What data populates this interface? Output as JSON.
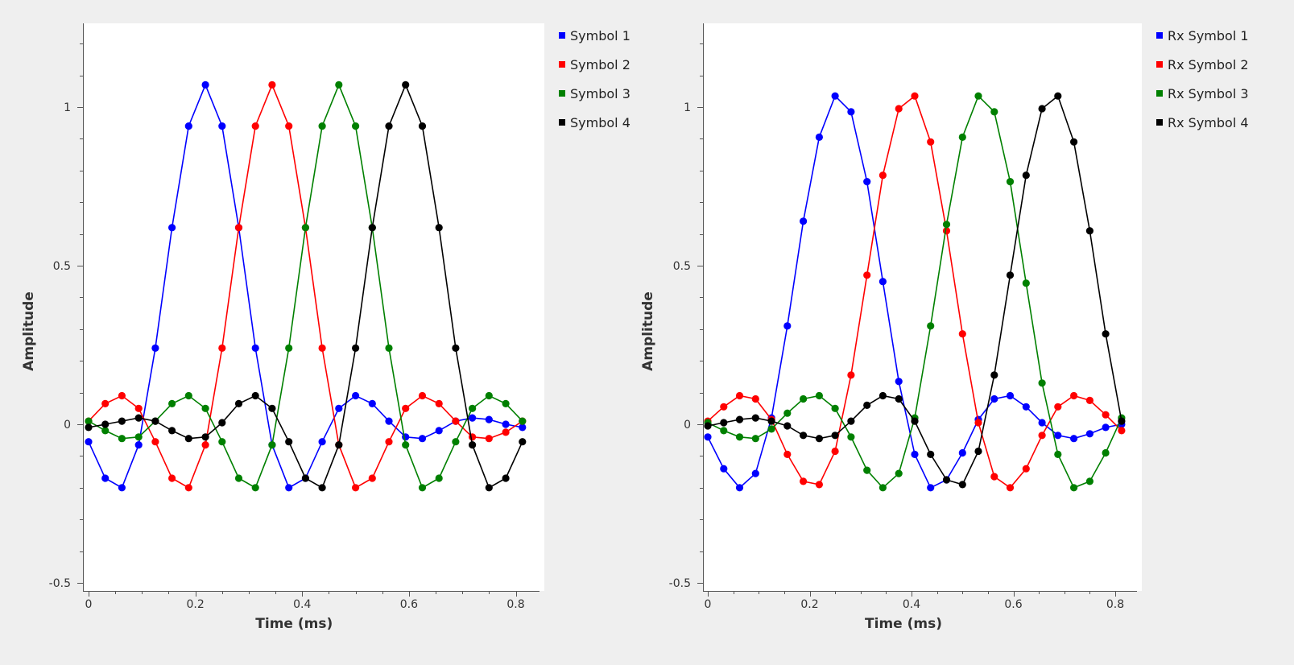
{
  "chart_data": [
    {
      "type": "line",
      "xlabel": "Time (ms)",
      "ylabel": "Amplitude",
      "xlim": [
        0,
        0.8125
      ],
      "ylim": [
        -0.5,
        1.25
      ],
      "xticks": [
        "0",
        "0.2",
        "0.4",
        "0.6",
        "0.8"
      ],
      "yticks": [
        "-0.5",
        "0",
        "0.5",
        "1"
      ],
      "grid": false,
      "legend_position": "outside-right-top",
      "x": [
        0,
        0.03125,
        0.0625,
        0.09375,
        0.125,
        0.15625,
        0.1875,
        0.21875,
        0.25,
        0.28125,
        0.3125,
        0.34375,
        0.375,
        0.40625,
        0.4375,
        0.46875,
        0.5,
        0.53125,
        0.5625,
        0.59375,
        0.625,
        0.65625,
        0.6875,
        0.71875,
        0.75,
        0.78125,
        0.8125
      ],
      "series": [
        {
          "name": "Symbol 1",
          "color": "#0000ff",
          "values": [
            -0.055,
            -0.17,
            -0.2,
            -0.065,
            0.24,
            0.62,
            0.94,
            1.07,
            0.94,
            0.62,
            0.24,
            -0.065,
            -0.2,
            -0.17,
            -0.055,
            0.05,
            0.09,
            0.065,
            0.01,
            -0.04,
            -0.045,
            -0.02,
            0.01,
            0.02,
            0.015,
            0.0,
            -0.01
          ]
        },
        {
          "name": "Symbol 2",
          "color": "#ff0000",
          "values": [
            0.01,
            0.065,
            0.09,
            0.05,
            -0.055,
            -0.17,
            -0.2,
            -0.065,
            0.24,
            0.62,
            0.94,
            1.07,
            0.94,
            0.62,
            0.24,
            -0.065,
            -0.2,
            -0.17,
            -0.055,
            0.05,
            0.09,
            0.065,
            0.01,
            -0.04,
            -0.045,
            -0.025,
            0.01
          ]
        },
        {
          "name": "Symbol 3",
          "color": "#008000",
          "values": [
            0.01,
            -0.02,
            -0.045,
            -0.04,
            0.01,
            0.065,
            0.09,
            0.05,
            -0.055,
            -0.17,
            -0.2,
            -0.065,
            0.24,
            0.62,
            0.94,
            1.07,
            0.94,
            0.62,
            0.24,
            -0.065,
            -0.2,
            -0.17,
            -0.055,
            0.05,
            0.09,
            0.065,
            0.01
          ]
        },
        {
          "name": "Symbol 4",
          "color": "#000000",
          "values": [
            -0.01,
            0.0,
            0.01,
            0.02,
            0.01,
            -0.02,
            -0.045,
            -0.04,
            0.005,
            0.065,
            0.09,
            0.05,
            -0.055,
            -0.17,
            -0.2,
            -0.065,
            0.24,
            0.62,
            0.94,
            1.07,
            0.94,
            0.62,
            0.24,
            -0.065,
            -0.2,
            -0.17,
            -0.055
          ]
        }
      ]
    },
    {
      "type": "line",
      "xlabel": "Time (ms)",
      "ylabel": "Amplitude",
      "xlim": [
        0,
        0.8125
      ],
      "ylim": [
        -0.5,
        1.25
      ],
      "xticks": [
        "0",
        "0.2",
        "0.4",
        "0.6",
        "0.8"
      ],
      "yticks": [
        "-0.5",
        "0",
        "0.5",
        "1"
      ],
      "grid": false,
      "legend_position": "outside-right-top",
      "x": [
        0,
        0.03125,
        0.0625,
        0.09375,
        0.125,
        0.15625,
        0.1875,
        0.21875,
        0.25,
        0.28125,
        0.3125,
        0.34375,
        0.375,
        0.40625,
        0.4375,
        0.46875,
        0.5,
        0.53125,
        0.5625,
        0.59375,
        0.625,
        0.65625,
        0.6875,
        0.71875,
        0.75,
        0.78125,
        0.8125
      ],
      "series": [
        {
          "name": "Rx Symbol 1",
          "color": "#0000ff",
          "values": [
            -0.04,
            -0.14,
            -0.2,
            -0.155,
            0.02,
            0.31,
            0.64,
            0.905,
            1.035,
            0.985,
            0.765,
            0.45,
            0.135,
            -0.095,
            -0.2,
            -0.175,
            -0.09,
            0.015,
            0.08,
            0.09,
            0.055,
            0.005,
            -0.035,
            -0.045,
            -0.03,
            -0.01,
            0.0
          ]
        },
        {
          "name": "Rx Symbol 2",
          "color": "#ff0000",
          "values": [
            0.01,
            0.055,
            0.09,
            0.08,
            0.015,
            -0.095,
            -0.18,
            -0.19,
            -0.085,
            0.155,
            0.47,
            0.785,
            0.995,
            1.035,
            0.89,
            0.61,
            0.285,
            0.005,
            -0.165,
            -0.2,
            -0.14,
            -0.035,
            0.055,
            0.09,
            0.075,
            0.03,
            -0.02
          ]
        },
        {
          "name": "Rx Symbol 3",
          "color": "#008000",
          "values": [
            0.005,
            -0.02,
            -0.04,
            -0.045,
            -0.015,
            0.035,
            0.08,
            0.09,
            0.05,
            -0.04,
            -0.145,
            -0.2,
            -0.155,
            0.02,
            0.31,
            0.63,
            0.905,
            1.035,
            0.985,
            0.765,
            0.445,
            0.13,
            -0.095,
            -0.2,
            -0.18,
            -0.09,
            0.02
          ]
        },
        {
          "name": "Rx Symbol 4",
          "color": "#000000",
          "values": [
            -0.005,
            0.005,
            0.015,
            0.02,
            0.01,
            -0.005,
            -0.035,
            -0.045,
            -0.035,
            0.01,
            0.06,
            0.09,
            0.08,
            0.01,
            -0.095,
            -0.175,
            -0.19,
            -0.085,
            0.155,
            0.47,
            0.785,
            0.995,
            1.035,
            0.89,
            0.61,
            0.285,
            0.01
          ]
        }
      ]
    }
  ]
}
